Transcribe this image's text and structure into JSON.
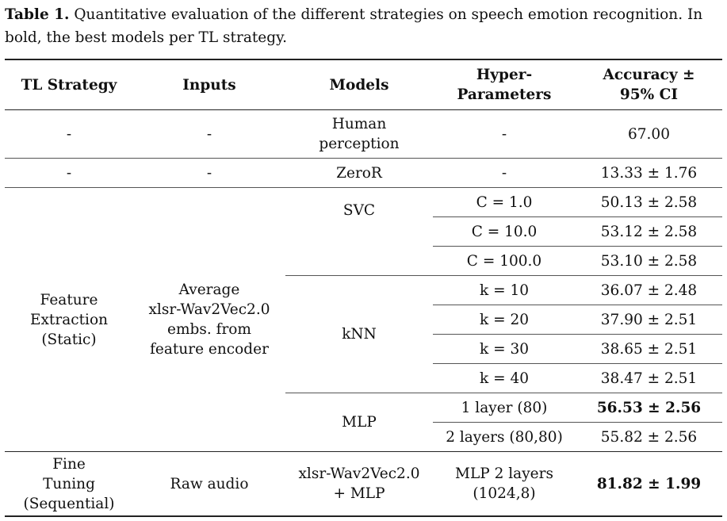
{
  "caption": {
    "label": "Table 1.",
    "text": " Quantitative evaluation of the different strategies on speech emotion recognition. In bold, the best models per TL strategy."
  },
  "header": {
    "strategy": "TL Strategy",
    "inputs": "Inputs",
    "models": "Models",
    "hyper_line1": "Hyper-",
    "hyper_line2": "Parameters",
    "acc_line1": "Accuracy ±",
    "acc_line2": "95% CI"
  },
  "rows": {
    "human": {
      "strategy": "-",
      "inputs": "-",
      "model_line1": "Human",
      "model_line2": "perception",
      "hyper": "-",
      "acc": "67.00"
    },
    "zeror": {
      "strategy": "-",
      "inputs": "-",
      "model": "ZeroR",
      "hyper": "-",
      "acc": "13.33 ± 1.76"
    },
    "feature": {
      "strategy_line1": "Feature",
      "strategy_line2": "Extraction",
      "strategy_line3": "(Static)",
      "inputs_line1": "Average",
      "inputs_line2": "xlsr-Wav2Vec2.0",
      "inputs_line3": "embs. from",
      "inputs_line4": "feature encoder",
      "svc": {
        "model": "SVC",
        "hyper": [
          "C = 1.0",
          "C = 10.0",
          "C = 100.0"
        ],
        "acc": [
          "50.13 ± 2.58",
          "53.12 ± 2.58",
          "53.10 ± 2.58"
        ]
      },
      "knn": {
        "model": "kNN",
        "hyper": [
          "k = 10",
          "k = 20",
          "k = 30",
          "k = 40"
        ],
        "acc": [
          "36.07 ± 2.48",
          "37.90 ± 2.51",
          "38.65 ± 2.51",
          "38.47 ± 2.51"
        ]
      },
      "mlp": {
        "model": "MLP",
        "hyper": [
          "1 layer (80)",
          "2 layers (80,80)"
        ],
        "acc": [
          "56.53 ± 2.56",
          "55.82 ± 2.56"
        ]
      }
    },
    "finetune": {
      "strategy_line1": "Fine",
      "strategy_line2": "Tuning",
      "strategy_line3": "(Sequential)",
      "inputs": "Raw audio",
      "model_line1": "xlsr-Wav2Vec2.0",
      "model_line2": "+ MLP",
      "hyper_line1": "MLP 2 layers",
      "hyper_line2": "(1024,8)",
      "acc": "81.82 ± 1.99"
    }
  }
}
